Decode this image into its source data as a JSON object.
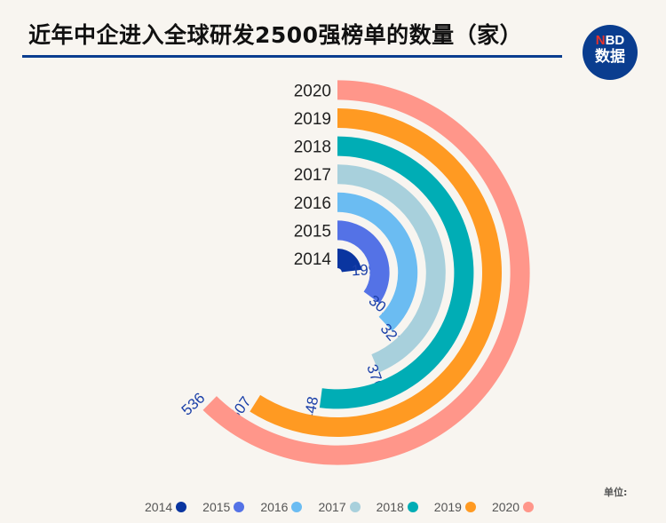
{
  "title": "近年中企进入全球研发2500强榜单的数量（家）",
  "logo": {
    "brand": "NBD",
    "sub": "数据"
  },
  "unit_label": "单位:",
  "chart_data": {
    "type": "radial-bar",
    "title": "近年中企进入全球研发2500强榜单的数量（家）",
    "categories": [
      "2014",
      "2015",
      "2016",
      "2017",
      "2018",
      "2019",
      "2020"
    ],
    "values": [
      199,
      301,
      327,
      376,
      448,
      507,
      536
    ],
    "colors": [
      "#0a35a0",
      "#5472e6",
      "#6bbcf2",
      "#a8d0dc",
      "#00adb5",
      "#ff9a22",
      "#ff968a"
    ],
    "label_color": "#1a3fa8",
    "full_circle_value": 860,
    "legend_position": "bottom"
  }
}
